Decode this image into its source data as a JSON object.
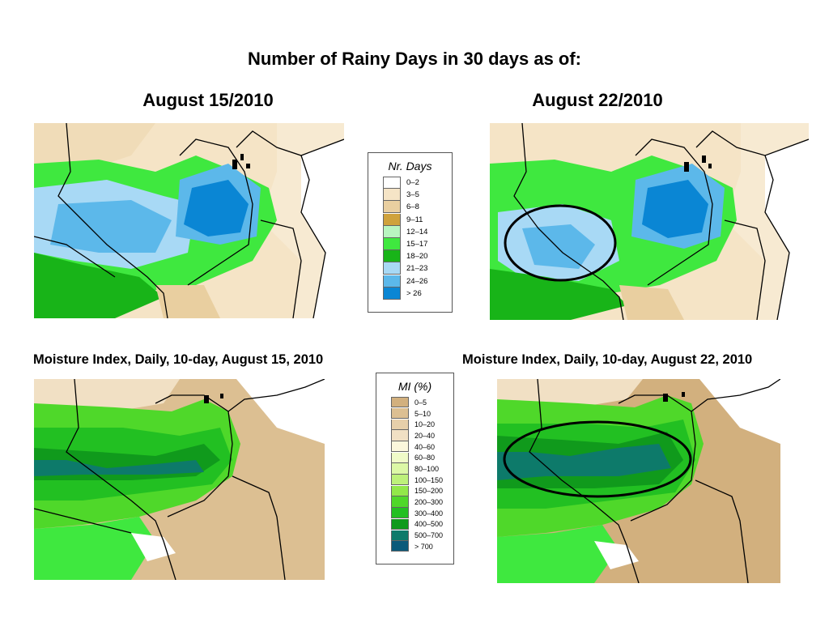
{
  "title": "Number of Rainy Days in 30 days as of:",
  "rainy": {
    "left_heading": "August 15/2010",
    "right_heading": "August 22/2010",
    "legend": {
      "title": "Nr. Days",
      "items": [
        {
          "label": "0–2",
          "color": "#ffffff"
        },
        {
          "label": "3–5",
          "color": "#f5e4c6"
        },
        {
          "label": "6–8",
          "color": "#e9cfa0"
        },
        {
          "label": "9–11",
          "color": "#cfa23c"
        },
        {
          "label": "12–14",
          "color": "#b8f5c0"
        },
        {
          "label": "15–17",
          "color": "#3fe83f"
        },
        {
          "label": "18–20",
          "color": "#18b418"
        },
        {
          "label": "21–23",
          "color": "#a8d9f5"
        },
        {
          "label": "24–26",
          "color": "#5cb8ea"
        },
        {
          "label": "> 26",
          "color": "#0a86d4"
        }
      ]
    }
  },
  "moisture": {
    "left_caption": "Moisture Index, Daily, 10-day, August 15, 2010",
    "right_caption": "Moisture Index, Daily, 10-day, August 22, 2010",
    "legend": {
      "title": "MI (%)",
      "items": [
        {
          "label": "0–5",
          "color": "#d2b07e"
        },
        {
          "label": "5–10",
          "color": "#dcbf92"
        },
        {
          "label": "10–20",
          "color": "#e6cfaa"
        },
        {
          "label": "20–40",
          "color": "#f1e0c4"
        },
        {
          "label": "40–60",
          "color": "#fbf7dc"
        },
        {
          "label": "60–80",
          "color": "#f0fbc8"
        },
        {
          "label": "80–100",
          "color": "#dcf8a6"
        },
        {
          "label": "100–150",
          "color": "#bdf17a"
        },
        {
          "label": "150–200",
          "color": "#92e84a"
        },
        {
          "label": "200–300",
          "color": "#4fd82a"
        },
        {
          "label": "300–400",
          "color": "#22c022"
        },
        {
          "label": "400–500",
          "color": "#109a1c"
        },
        {
          "label": "500–700",
          "color": "#0d7a6a"
        },
        {
          "label": "> 700",
          "color": "#0a5a7a"
        }
      ]
    }
  }
}
